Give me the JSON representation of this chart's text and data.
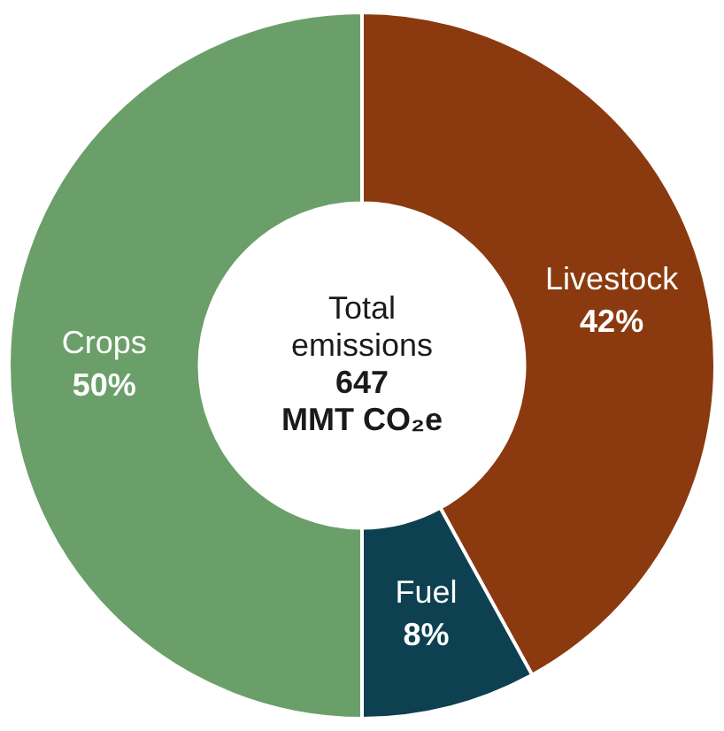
{
  "chart_data": {
    "type": "donut",
    "categories": [
      "Livestock",
      "Fuel",
      "Crops"
    ],
    "values": [
      42,
      8,
      50
    ],
    "colors": [
      "#8b3a0f",
      "#0d4050",
      "#6b9f69"
    ],
    "value_labels": [
      "42%",
      "8%",
      "50%"
    ],
    "annotations": [
      "Total emissions",
      "647 MMT CO₂e"
    ],
    "legend": false
  }
}
